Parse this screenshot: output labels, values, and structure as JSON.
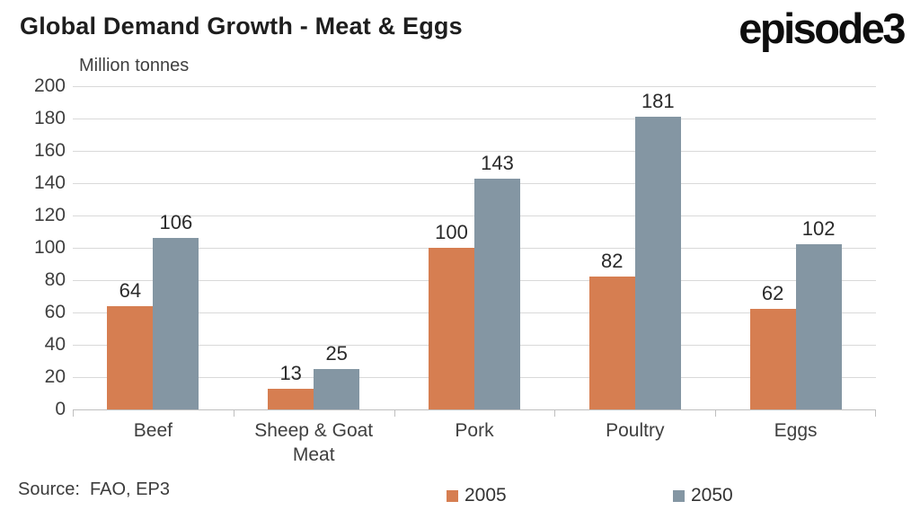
{
  "header": {
    "title": "Global Demand Growth - Meat & Eggs",
    "logo_text": "episode3"
  },
  "chart_data": {
    "type": "bar",
    "title": "Global Demand Growth - Meat & Eggs",
    "axis_title": "Million tonnes",
    "categories": [
      "Beef",
      "Sheep & Goat Meat",
      "Pork",
      "Poultry",
      "Eggs"
    ],
    "series": [
      {
        "name": "2005",
        "color": "#D67E51",
        "values": [
          64,
          13,
          100,
          82,
          62
        ]
      },
      {
        "name": "2050",
        "color": "#8496A3",
        "values": [
          106,
          25,
          143,
          181,
          102
        ]
      }
    ],
    "ylim": [
      0,
      200
    ],
    "ytick_step": 20,
    "grid": "horizontal",
    "legend_position": "bottom",
    "colors": {
      "gridline": "#d9d9d9",
      "axis_line": "#bfbfbf",
      "text": "#3f3f3f",
      "title": "#1e1e1e"
    }
  },
  "footer": {
    "source": "Source:  FAO, EP3"
  }
}
